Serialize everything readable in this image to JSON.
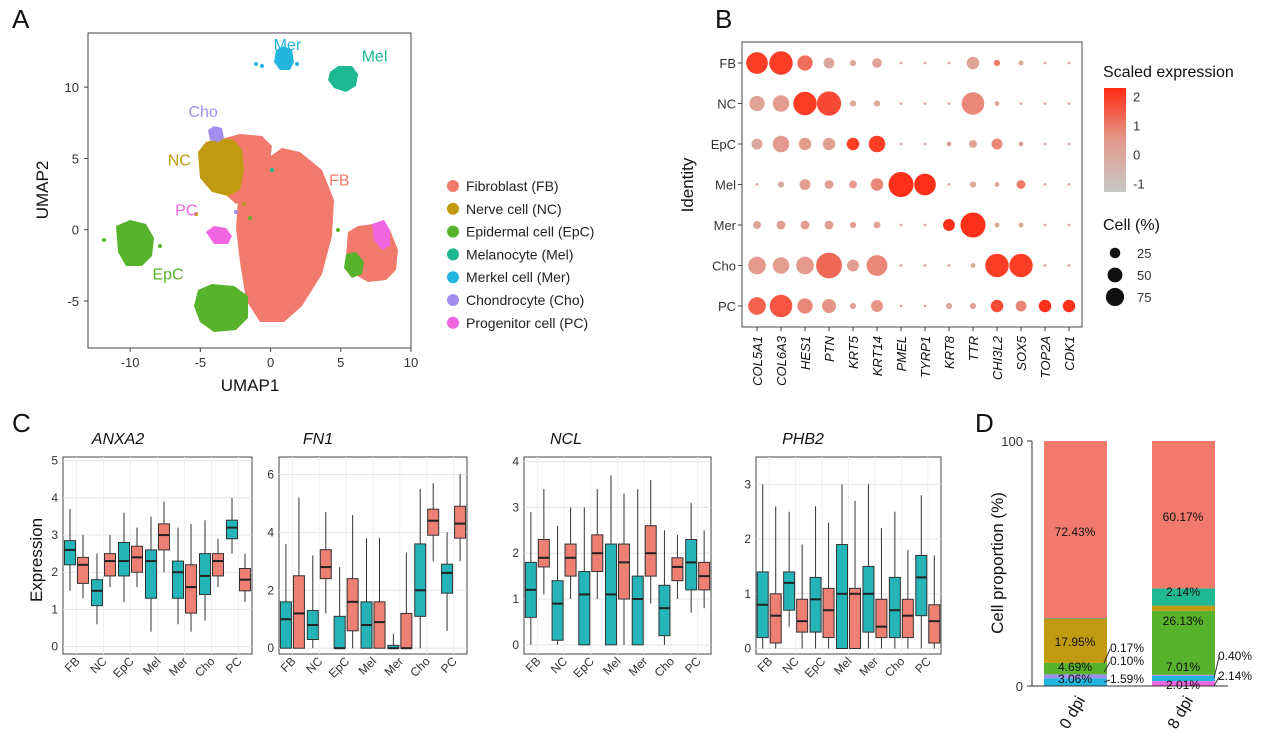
{
  "panel_letters": {
    "A": "A",
    "B": "B",
    "C": "C",
    "D": "D"
  },
  "colors": {
    "FB": "#f27a6c",
    "NC": "#c09a10",
    "EpC": "#59b22c",
    "Mel": "#1fb892",
    "Mer": "#22b5e0",
    "Cho": "#a38ef0",
    "PC": "#f065e0",
    "box_teal": "#25b5b8",
    "box_red": "#ee7f73"
  },
  "chart_data": [
    {
      "panel": "A",
      "type": "scatter",
      "xlabel": "UMAP1",
      "ylabel": "UMAP2",
      "xticks": [
        -10,
        -5,
        0,
        5,
        10
      ],
      "yticks": [
        -5,
        0,
        5,
        10
      ],
      "xlim": [
        -13,
        10
      ],
      "ylim": [
        -8.3,
        13.8
      ],
      "legend": [
        {
          "key": "FB",
          "label": "Fibroblast (FB)"
        },
        {
          "key": "NC",
          "label": "Nerve cell (NC)"
        },
        {
          "key": "EpC",
          "label": "Epidermal cell (EpC)"
        },
        {
          "key": "Mel",
          "label": "Melanocyte (Mel)"
        },
        {
          "key": "Mer",
          "label": "Merkel cell (Mer)"
        },
        {
          "key": "Cho",
          "label": "Chondrocyte (Cho)"
        },
        {
          "key": "PC",
          "label": "Progenitor cell (PC)"
        }
      ],
      "cluster_labels": [
        {
          "key": "Mer",
          "text": "Mer",
          "x": 1.2,
          "y": 12.6
        },
        {
          "key": "Mel",
          "text": "Mel",
          "x": 7.4,
          "y": 11.8
        },
        {
          "key": "Cho",
          "text": "Cho",
          "x": -4.8,
          "y": 7.9
        },
        {
          "key": "NC",
          "text": "NC",
          "x": -6.5,
          "y": 4.5
        },
        {
          "key": "FB",
          "text": "FB",
          "x": 4.9,
          "y": 3.1
        },
        {
          "key": "PC",
          "text": "PC",
          "x": -6.0,
          "y": 1.0
        },
        {
          "key": "EpC",
          "text": "EpC",
          "x": -7.3,
          "y": -3.5
        }
      ]
    },
    {
      "panel": "B",
      "type": "dot",
      "ylabel": "Identity",
      "genes": [
        "COL5A1",
        "COL6A3",
        "HES1",
        "PTN",
        "KRT5",
        "KRT14",
        "PMEL",
        "TYRP1",
        "KRT8",
        "TTR",
        "CHI3L2",
        "SOX5",
        "TOP2A",
        "CDK1"
      ],
      "identities": [
        "FB",
        "NC",
        "EpC",
        "Mel",
        "Mer",
        "Cho",
        "PC"
      ],
      "pct": [
        [
          60,
          70,
          30,
          15,
          5,
          12,
          1,
          1,
          1,
          20,
          5,
          3,
          1,
          1
        ],
        [
          30,
          35,
          70,
          75,
          5,
          5,
          1,
          1,
          1,
          65,
          3,
          1,
          1,
          1
        ],
        [
          15,
          35,
          20,
          20,
          20,
          35,
          1,
          1,
          3,
          8,
          15,
          3,
          1,
          1
        ],
        [
          1,
          5,
          15,
          10,
          8,
          20,
          80,
          60,
          1,
          5,
          3,
          10,
          1,
          1
        ],
        [
          8,
          10,
          10,
          10,
          5,
          6,
          1,
          1,
          18,
          80,
          3,
          3,
          1,
          1
        ],
        [
          40,
          35,
          40,
          85,
          18,
          55,
          1,
          1,
          1,
          3,
          70,
          70,
          1,
          1
        ],
        [
          40,
          65,
          30,
          25,
          5,
          18,
          1,
          1,
          5,
          5,
          20,
          15,
          20,
          20
        ]
      ],
      "scaled": [
        [
          2.0,
          2.0,
          1.2,
          0.0,
          0.0,
          0.2,
          0,
          0,
          0,
          0.2,
          1.0,
          0,
          0,
          0
        ],
        [
          0.2,
          0.4,
          2.0,
          1.8,
          0.0,
          0.0,
          0,
          0,
          0,
          0.8,
          0,
          0,
          0,
          0
        ],
        [
          0.0,
          0.5,
          0.5,
          0.3,
          2.0,
          2.0,
          0,
          0,
          0,
          0.2,
          0.8,
          0,
          0,
          0
        ],
        [
          0.0,
          -0.2,
          0.4,
          0.3,
          0.5,
          0.8,
          2.2,
          2.2,
          0,
          0,
          0,
          1.0,
          0,
          0
        ],
        [
          0.2,
          0.3,
          0.4,
          0.3,
          0.3,
          0.2,
          0,
          0,
          2.2,
          2.2,
          0,
          0,
          0,
          0
        ],
        [
          0.5,
          0.4,
          0.5,
          1.3,
          0.3,
          0.8,
          0,
          0,
          0,
          0,
          2.0,
          2.0,
          0,
          0
        ],
        [
          1.4,
          1.6,
          0.8,
          0.6,
          0.2,
          0.6,
          0,
          0,
          0,
          0.2,
          1.8,
          0.8,
          2.2,
          2.2
        ]
      ],
      "color_legend": {
        "title": "Scaled expression",
        "ticks": [
          2,
          1,
          0,
          -1
        ],
        "min": -1.3,
        "max": 2.3
      },
      "size_legend": {
        "title": "Cell (%)",
        "values": [
          25,
          50,
          75
        ]
      }
    },
    {
      "panel": "C",
      "type": "box",
      "ylabel": "Expression",
      "categories": [
        "FB",
        "NC",
        "EpC",
        "Mel",
        "Mer",
        "Cho",
        "PC"
      ],
      "genes": [
        {
          "gene": "ANXA2",
          "ylim": [
            -0.2,
            5.1
          ],
          "yticks": [
            0,
            1,
            2,
            3,
            4,
            5
          ],
          "teal": [
            [
              1.5,
              2.2,
              2.6,
              2.85,
              3.7
            ],
            [
              0.6,
              1.1,
              1.5,
              1.8,
              2.5
            ],
            [
              1.2,
              1.9,
              2.3,
              2.8,
              3.6
            ],
            [
              0.4,
              1.3,
              2.3,
              2.6,
              3.5
            ],
            [
              0.6,
              1.3,
              2.0,
              2.3,
              3.2
            ],
            [
              0.7,
              1.4,
              1.9,
              2.5,
              3.4
            ],
            [
              2.5,
              2.9,
              3.2,
              3.4,
              4.0
            ]
          ],
          "red": [
            [
              1.3,
              1.7,
              2.2,
              2.4,
              3.0
            ],
            [
              1.6,
              1.9,
              2.3,
              2.5,
              3.0
            ],
            [
              1.6,
              2.0,
              2.4,
              2.7,
              3.2
            ],
            [
              2.0,
              2.6,
              3.0,
              3.3,
              3.9
            ],
            [
              0.4,
              0.9,
              1.6,
              2.2,
              3.3
            ],
            [
              1.6,
              1.9,
              2.3,
              2.5,
              2.9
            ],
            [
              1.2,
              1.5,
              1.8,
              2.1,
              2.5
            ]
          ]
        },
        {
          "gene": "FN1",
          "ylim": [
            -0.2,
            6.6
          ],
          "yticks": [
            0,
            2,
            4,
            6
          ],
          "teal": [
            [
              0,
              0,
              1.0,
              1.6,
              3.6
            ],
            [
              0,
              0.3,
              0.8,
              1.3,
              3.2
            ],
            [
              0,
              0,
              0,
              1.1,
              2.8
            ],
            [
              0,
              0,
              0.8,
              1.6,
              3.8
            ],
            [
              0,
              0,
              0,
              0.1,
              0.5
            ],
            [
              0,
              1.1,
              2.0,
              3.6,
              5.5
            ],
            [
              0.6,
              1.9,
              2.6,
              2.9,
              4.0
            ]
          ],
          "red": [
            [
              0,
              0,
              1.2,
              2.5,
              5.2
            ],
            [
              1.2,
              2.4,
              2.8,
              3.4,
              4.7
            ],
            [
              0,
              0.6,
              1.6,
              2.4,
              4.6
            ],
            [
              0,
              0,
              0.9,
              1.6,
              3.8
            ],
            [
              0,
              0,
              0,
              1.2,
              3.3
            ],
            [
              3.0,
              3.9,
              4.4,
              4.8,
              5.7
            ],
            [
              3.0,
              3.8,
              4.3,
              4.9,
              6.0
            ]
          ]
        },
        {
          "gene": "NCL",
          "ylim": [
            -0.2,
            4.1
          ],
          "yticks": [
            0,
            1,
            2,
            3,
            4
          ],
          "teal": [
            [
              0,
              0.6,
              1.2,
              1.8,
              2.9
            ],
            [
              0,
              0.1,
              0.9,
              1.4,
              2.6
            ],
            [
              0,
              0,
              1.1,
              1.6,
              3.0
            ],
            [
              0,
              0,
              1.1,
              2.2,
              3.7
            ],
            [
              0,
              0,
              1.0,
              1.5,
              3.4
            ],
            [
              0,
              0.2,
              0.8,
              1.3,
              2.5
            ],
            [
              0.7,
              1.2,
              1.8,
              2.3,
              3.1
            ]
          ],
          "red": [
            [
              1.1,
              1.7,
              1.9,
              2.3,
              3.4
            ],
            [
              1.0,
              1.5,
              1.9,
              2.2,
              3.0
            ],
            [
              1.0,
              1.6,
              2.0,
              2.4,
              3.4
            ],
            [
              0,
              1.0,
              1.8,
              2.2,
              3.3
            ],
            [
              0.9,
              1.5,
              2.0,
              2.6,
              3.6
            ],
            [
              1.0,
              1.4,
              1.7,
              1.9,
              2.4
            ],
            [
              0.8,
              1.2,
              1.5,
              1.8,
              2.5
            ]
          ]
        },
        {
          "gene": "PHB2",
          "ylim": [
            -0.1,
            3.5
          ],
          "yticks": [
            0,
            1,
            2,
            3
          ],
          "teal": [
            [
              0,
              0.2,
              0.8,
              1.4,
              3.0
            ],
            [
              0.4,
              0.7,
              1.2,
              1.4,
              2.5
            ],
            [
              0,
              0.3,
              0.9,
              1.3,
              2.6
            ],
            [
              0,
              0,
              1.0,
              1.9,
              3.0
            ],
            [
              0,
              0.3,
              1.0,
              1.5,
              3.0
            ],
            [
              0,
              0.2,
              0.7,
              1.3,
              2.5
            ],
            [
              0,
              0.6,
              1.3,
              1.7,
              2.8
            ]
          ],
          "red": [
            [
              0,
              0.1,
              0.6,
              1.0,
              2.6
            ],
            [
              0,
              0.3,
              0.5,
              0.9,
              1.9
            ],
            [
              0,
              0.2,
              0.7,
              1.1,
              2.3
            ],
            [
              0,
              0,
              1.0,
              1.1,
              2.7
            ],
            [
              0,
              0.2,
              0.4,
              0.9,
              2.2
            ],
            [
              0,
              0.2,
              0.6,
              0.9,
              1.8
            ],
            [
              0,
              0.1,
              0.5,
              0.8,
              1.7
            ]
          ]
        }
      ]
    },
    {
      "panel": "D",
      "type": "bar",
      "stacked": true,
      "ylabel": "Cell proportion (%)",
      "yticks": [
        0,
        100
      ],
      "ylim": [
        0,
        100
      ],
      "categories": [
        "0 dpi",
        "8 dpi"
      ],
      "stack_order": [
        "PC",
        "Mer",
        "Cho",
        "EpC",
        "NC",
        "Mel",
        "FB"
      ],
      "values": {
        "0 dpi": {
          "PC": 0.1,
          "Mer": 3.06,
          "Cho": 1.59,
          "EpC": 4.69,
          "NC": 17.95,
          "Mel": 0.17,
          "FB": 72.43
        },
        "8 dpi": {
          "PC": 2.01,
          "Mer": 2.14,
          "Cho": 0.4,
          "EpC": 26.13,
          "NC": 2.14,
          "Mel": 7.01,
          "FB": 60.17
        }
      },
      "labels": [
        {
          "bar": "0 dpi",
          "text": "72.43%"
        },
        {
          "bar": "0 dpi",
          "text": "17.95%"
        },
        {
          "bar": "0 dpi",
          "text": "4.69%"
        },
        {
          "bar": "0 dpi",
          "text": "3.06%"
        },
        {
          "bar": "0 dpi",
          "text": "0.17%"
        },
        {
          "bar": "0 dpi",
          "text": "0.10%"
        },
        {
          "bar": "0 dpi",
          "text": "1.59%"
        },
        {
          "bar": "8 dpi",
          "text": "60.17%"
        },
        {
          "bar": "8 dpi",
          "text": "2.14%"
        },
        {
          "bar": "8 dpi",
          "text": "26.13%"
        },
        {
          "bar": "8 dpi",
          "text": "7.01%"
        },
        {
          "bar": "8 dpi",
          "text": "2.01%"
        },
        {
          "bar": "8 dpi",
          "text": "0.40%"
        },
        {
          "bar": "8 dpi",
          "text": "2.14%"
        }
      ]
    }
  ]
}
